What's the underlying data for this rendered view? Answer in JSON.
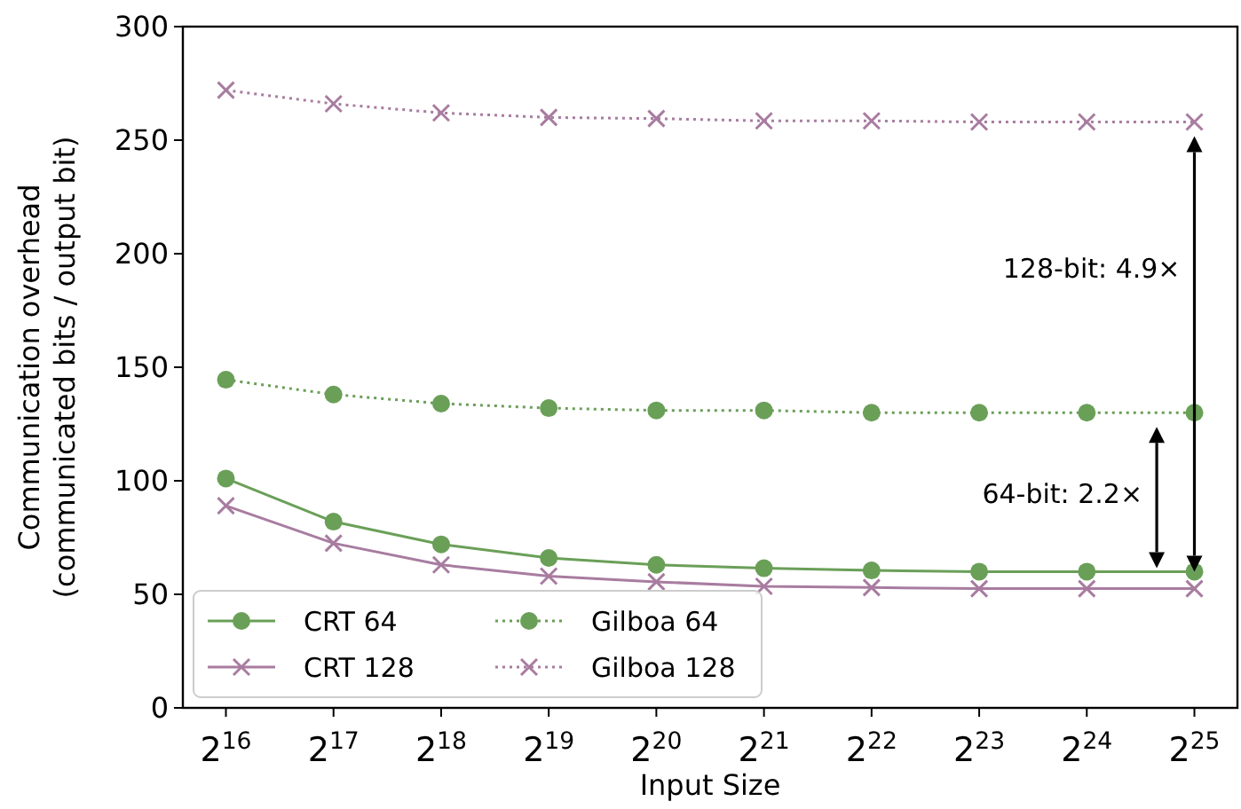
{
  "chart_data": {
    "type": "line",
    "xlabel": "Input Size",
    "ylabel": "Communication overhead\n(communicated bits / output bit)",
    "categories": [
      "2$^{16}$",
      "2$^{17}$",
      "2$^{18}$",
      "2$^{19}$",
      "2$^{20}$",
      "2$^{21}$",
      "2$^{22}$",
      "2$^{23}$",
      "2$^{24}$",
      "2$^{25}$"
    ],
    "ylim": [
      0,
      300
    ],
    "yticks": [
      0,
      50,
      100,
      150,
      200,
      250,
      300
    ],
    "grid": false,
    "legend": "bottom left",
    "series": [
      {
        "name": "CRT 64",
        "color": "#6a9f58",
        "marker": "circle",
        "line_style": "solid",
        "values": [
          101,
          82,
          72,
          66,
          63,
          61.5,
          60.5,
          60,
          60,
          60
        ]
      },
      {
        "name": "CRT 128",
        "color": "#a87ca0",
        "marker": "cross",
        "line_style": "solid",
        "values": [
          89,
          72.5,
          63,
          58,
          55.5,
          53.5,
          53,
          52.5,
          52.5,
          52.5
        ]
      },
      {
        "name": "Gilboa 64",
        "color": "#6a9f58",
        "marker": "circle",
        "line_style": "dotted",
        "values": [
          144.5,
          138,
          134,
          132,
          131,
          131,
          130,
          130,
          130,
          130
        ]
      },
      {
        "name": "Gilboa 128",
        "color": "#a87ca0",
        "marker": "cross",
        "line_style": "dotted",
        "values": [
          272,
          266,
          262,
          260,
          259.5,
          258.5,
          258.5,
          258,
          258,
          258
        ]
      }
    ],
    "annotations": [
      "128-bit: 4.9×",
      "64-bit: 2.2×"
    ]
  }
}
